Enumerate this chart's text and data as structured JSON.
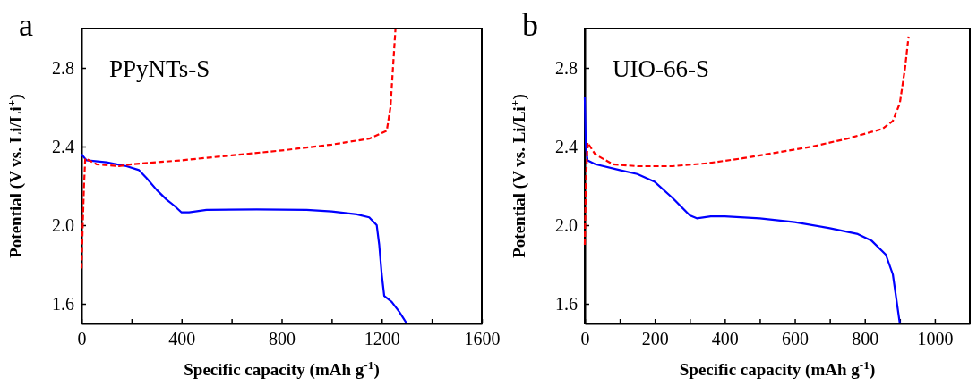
{
  "chart_data": [
    {
      "type": "line",
      "title": "a",
      "xlabel": "Specific capacity (mAh g$^{-1}$)",
      "ylabel": "Potential (V vs. Li/Li$^{+}$)",
      "annotations": [
        "PPyNTs-S"
      ],
      "xlim": [
        0,
        1600
      ],
      "xticks": [
        0,
        {
          "value": 200,
          "label": null
        },
        400,
        {
          "value": 600,
          "label": null
        },
        800,
        {
          "value": 1000,
          "label": null
        },
        1200,
        {
          "value": 1400,
          "label": null
        },
        1600
      ],
      "ylim": [
        1.5,
        3.0
      ],
      "yticks": [
        1.6,
        {
          "value": 2.0,
          "label": "2.0"
        },
        2.4,
        2.8
      ],
      "series": [
        {
          "color": "#0000ff",
          "line_style": "solid",
          "x": [
            0,
            20,
            100,
            180,
            230,
            260,
            300,
            340,
            370,
            400,
            430,
            500,
            700,
            900,
            1000,
            1100,
            1150,
            1180,
            1190,
            1200,
            1210,
            1240,
            1270,
            1300
          ],
          "values": [
            2.36,
            2.33,
            2.32,
            2.3,
            2.28,
            2.24,
            2.18,
            2.13,
            2.1,
            2.065,
            2.065,
            2.078,
            2.08,
            2.078,
            2.07,
            2.055,
            2.04,
            2.0,
            1.9,
            1.75,
            1.64,
            1.61,
            1.56,
            1.5
          ]
        },
        {
          "color": "#ff0000",
          "line_style": "dashed",
          "x": [
            0,
            5,
            10,
            15,
            60,
            150,
            200,
            400,
            600,
            800,
            1000,
            1150,
            1220,
            1235,
            1245,
            1255
          ],
          "values": [
            1.78,
            2.0,
            2.2,
            2.34,
            2.31,
            2.3,
            2.31,
            2.33,
            2.355,
            2.38,
            2.41,
            2.44,
            2.48,
            2.6,
            2.8,
            3.0
          ]
        }
      ]
    },
    {
      "type": "line",
      "title": "b",
      "xlabel": "Specific capacity (mAh g$^{-1}$)",
      "ylabel": "Potential (V vs. Li/Li$^{+}$)",
      "annotations": [
        "UIO-66-S"
      ],
      "xlim": [
        0,
        1100
      ],
      "xticks": [
        0,
        {
          "value": 100,
          "label": null
        },
        200,
        {
          "value": 300,
          "label": null
        },
        400,
        {
          "value": 500,
          "label": null
        },
        600,
        {
          "value": 700,
          "label": null
        },
        800,
        {
          "value": 900,
          "label": null
        },
        1000
      ],
      "ylim": [
        1.5,
        3.0
      ],
      "yticks": [
        1.6,
        {
          "value": 2.0,
          "label": "2.0"
        },
        2.4,
        2.8
      ],
      "series": [
        {
          "color": "#0000ff",
          "line_style": "solid",
          "x": [
            0,
            3,
            8,
            30,
            100,
            150,
            200,
            250,
            300,
            320,
            360,
            400,
            500,
            600,
            700,
            780,
            820,
            860,
            880,
            900
          ],
          "values": [
            2.65,
            2.4,
            2.33,
            2.31,
            2.28,
            2.26,
            2.22,
            2.14,
            2.05,
            2.035,
            2.045,
            2.045,
            2.035,
            2.015,
            1.985,
            1.955,
            1.92,
            1.85,
            1.75,
            1.5
          ]
        },
        {
          "color": "#ff0000",
          "line_style": "dashed",
          "x": [
            0,
            3,
            8,
            30,
            80,
            150,
            250,
            350,
            450,
            550,
            650,
            750,
            850,
            880,
            900,
            915,
            925
          ],
          "values": [
            1.9,
            2.2,
            2.42,
            2.36,
            2.31,
            2.3,
            2.3,
            2.315,
            2.34,
            2.37,
            2.4,
            2.44,
            2.49,
            2.53,
            2.62,
            2.8,
            2.96
          ]
        }
      ]
    }
  ]
}
